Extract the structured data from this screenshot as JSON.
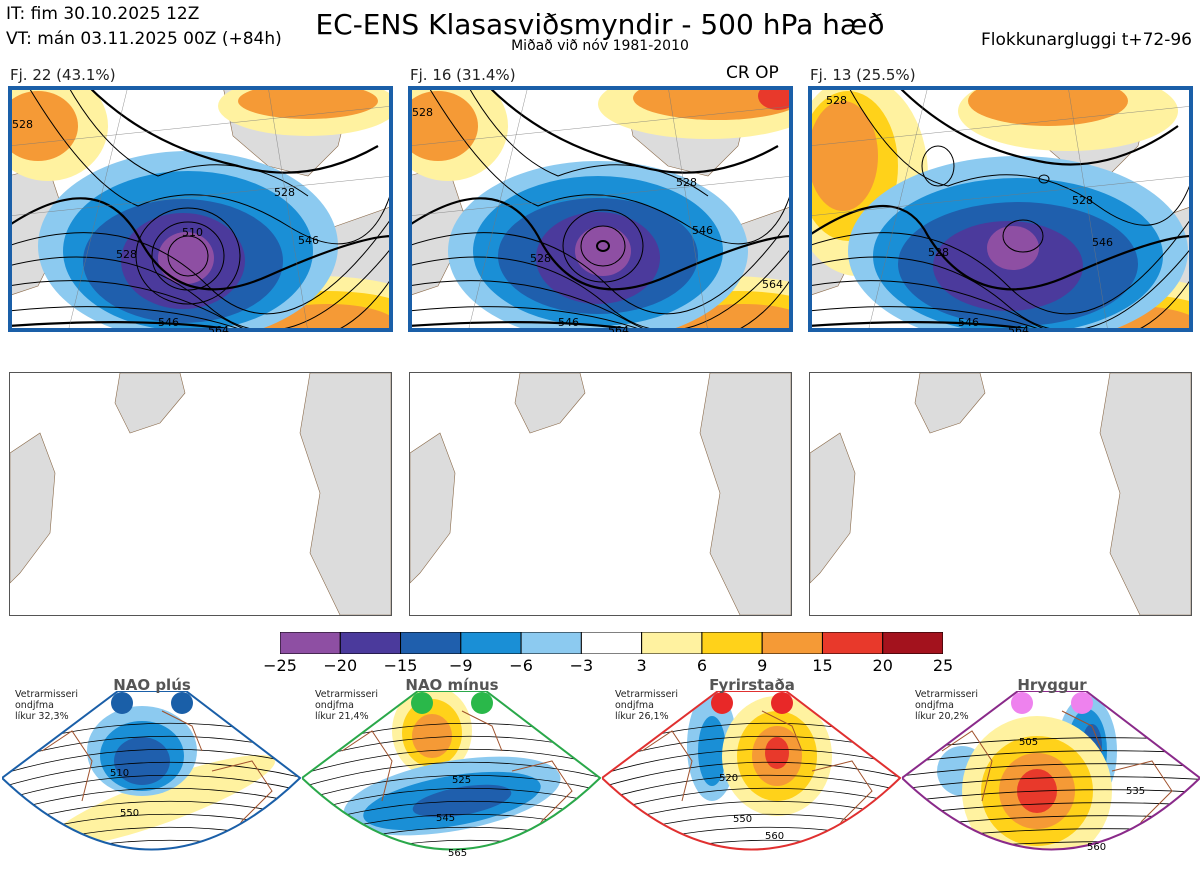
{
  "header": {
    "it": "IT: fim 30.10.2025 12Z",
    "vt": "VT: mán 03.11.2025 00Z  (+84h)",
    "title": "EC-ENS Klasasviðsmyndir - 500 hPa hæð",
    "subtitle": "Miðað við nóv 1981-2010",
    "window": "Flokkunargluggi t+72-96"
  },
  "clusters": [
    {
      "label": "Fj. 22 (43.1%)",
      "extra": "",
      "frame_color": "#1a5fa8",
      "contour_labels": [
        "528",
        "528",
        "510",
        "546",
        "528",
        "546",
        "564"
      ]
    },
    {
      "label": "Fj. 16 (31.4%)",
      "extra": "CR OP",
      "frame_color": "#1a5fa8",
      "contour_labels": [
        "528",
        "528",
        "546",
        "564",
        "528",
        "546",
        "564"
      ]
    },
    {
      "label": "Fj. 13 (25.5%)",
      "extra": "",
      "frame_color": "#1a5fa8",
      "contour_labels": [
        "528",
        "528",
        "546",
        "528",
        "546",
        "564"
      ]
    }
  ],
  "chart_data": {
    "type": "heatmap",
    "colorbar": {
      "ticks": [
        "−25",
        "−20",
        "−15",
        "−9",
        "−6",
        "−3",
        "3",
        "6",
        "9",
        "15",
        "20",
        "25"
      ],
      "colors": [
        "#8e4fa3",
        "#4b3a9c",
        "#1f5fad",
        "#1a8fd6",
        "#8ccaf0",
        "#ffffff",
        "#fff2a0",
        "#ffd21a",
        "#f59a36",
        "#e8392b",
        "#a3121d"
      ]
    }
  },
  "regimes": [
    {
      "name": "NAO plús",
      "info": [
        "Vetrarmisseri",
        "ondjfma",
        "líkur 32,3%"
      ],
      "color": "#1a5fa8",
      "dot_color": "#1a5fa8",
      "labels": [
        "510",
        "550"
      ]
    },
    {
      "name": "NAO mínus",
      "info": [
        "Vetrarmisseri",
        "ondjfma",
        "líkur 21,4%"
      ],
      "color": "#2aa84a",
      "dot_color": "#2ab84a",
      "labels": [
        "525",
        "545",
        "565"
      ]
    },
    {
      "name": "Fyrirstaða",
      "info": [
        "Vetrarmisseri",
        "ondjfma",
        "líkur 26,1%"
      ],
      "color": "#e03030",
      "dot_color": "#e82828",
      "labels": [
        "520",
        "550",
        "560"
      ]
    },
    {
      "name": "Hryggur",
      "info": [
        "Vetrarmisseri",
        "ondjfma",
        "líkur 20,2%"
      ],
      "color": "#8a2a8a",
      "dot_color": "#ee82ee",
      "labels": [
        "505",
        "535",
        "560"
      ]
    }
  ]
}
